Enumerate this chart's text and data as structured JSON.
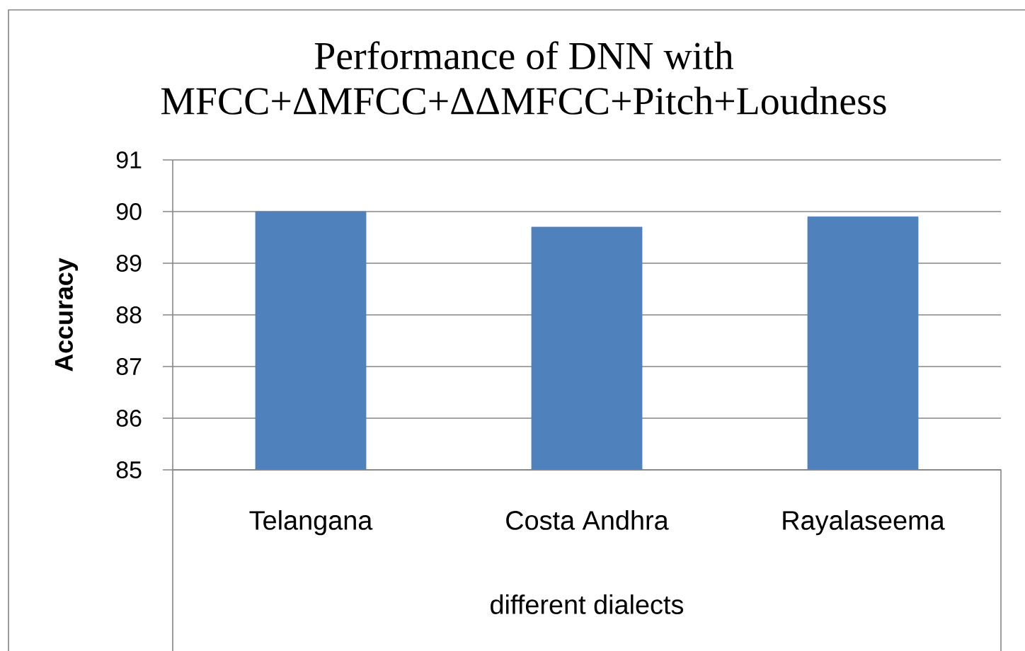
{
  "chart_data": {
    "type": "bar",
    "title": "Performance of DNN with MFCC+ΔMFCC+ΔΔMFCC+Pitch+Loudness",
    "xlabel": "different dialects",
    "ylabel": "Accuracy",
    "categories": [
      "Telangana",
      "Costa Andhra",
      "Rayalaseema"
    ],
    "values": [
      90.0,
      89.7,
      89.9
    ],
    "color": "#4f81bd",
    "ylim": [
      85,
      91
    ],
    "yticks": [
      85,
      86,
      87,
      88,
      89,
      90,
      91
    ],
    "grid": "y"
  }
}
